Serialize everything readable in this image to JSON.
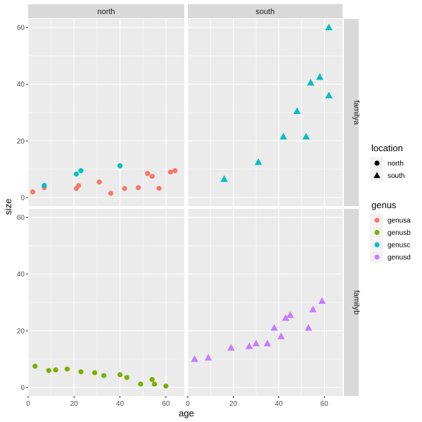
{
  "chart_data": {
    "type": "scatter",
    "xlabel": "age",
    "ylabel": "size",
    "xlim": [
      0,
      68
    ],
    "ylim": [
      -3,
      63
    ],
    "xticks": [
      0,
      20,
      40,
      60
    ],
    "yticks": [
      0,
      20,
      40,
      60
    ],
    "grid": true,
    "facet_cols": [
      "north",
      "south"
    ],
    "facet_rows": [
      "familya",
      "familyb"
    ],
    "legends": [
      {
        "title": "location",
        "position": "right",
        "entries": [
          {
            "label": "north",
            "shape": "circle"
          },
          {
            "label": "south",
            "shape": "triangle"
          }
        ]
      },
      {
        "title": "genus",
        "position": "right",
        "entries": [
          {
            "label": "genusa",
            "color": "#F8766D"
          },
          {
            "label": "genusb",
            "color": "#7CAE00"
          },
          {
            "label": "genusc",
            "color": "#00BFC4"
          },
          {
            "label": "genusd",
            "color": "#C77CFF"
          }
        ]
      }
    ],
    "series": [
      {
        "facet_row": "familya",
        "facet_col": "north",
        "genus": "genusa",
        "location": "north",
        "color": "#F8766D",
        "shape": "circle",
        "points": [
          [
            2,
            2
          ],
          [
            7,
            3.5
          ],
          [
            21,
            3.2
          ],
          [
            22,
            4.2
          ],
          [
            31,
            5.5
          ],
          [
            36,
            1.5
          ],
          [
            42,
            3.2
          ],
          [
            48,
            3.5
          ],
          [
            52,
            8.5
          ],
          [
            54,
            7.5
          ],
          [
            57,
            3.3
          ],
          [
            62,
            9
          ],
          [
            64,
            9.5
          ]
        ]
      },
      {
        "facet_row": "familya",
        "facet_col": "north",
        "genus": "genusc",
        "location": "north",
        "color": "#00BFC4",
        "shape": "circle",
        "points": [
          [
            7,
            4.3
          ],
          [
            21,
            8.3
          ],
          [
            23,
            9.5
          ],
          [
            40,
            11.2
          ]
        ]
      },
      {
        "facet_row": "familya",
        "facet_col": "south",
        "genus": "genusc",
        "location": "south",
        "color": "#00BFC4",
        "shape": "triangle",
        "points": [
          [
            16,
            6.5
          ],
          [
            31,
            12.5
          ],
          [
            42,
            21.5
          ],
          [
            48,
            30.5
          ],
          [
            52,
            21.5
          ],
          [
            54,
            40.5
          ],
          [
            58,
            42.5
          ],
          [
            62,
            60
          ],
          [
            62,
            36
          ]
        ]
      },
      {
        "facet_row": "familyb",
        "facet_col": "north",
        "genus": "genusb",
        "location": "north",
        "color": "#7CAE00",
        "shape": "circle",
        "points": [
          [
            3,
            7.5
          ],
          [
            9,
            6
          ],
          [
            12,
            6.2
          ],
          [
            17,
            6.5
          ],
          [
            23,
            5.5
          ],
          [
            29,
            5.2
          ],
          [
            33,
            4.2
          ],
          [
            40,
            4.5
          ],
          [
            43,
            3.5
          ],
          [
            49,
            1.2
          ],
          [
            54,
            2.8
          ],
          [
            55,
            1.2
          ],
          [
            60,
            0.5
          ]
        ]
      },
      {
        "facet_row": "familyb",
        "facet_col": "south",
        "genus": "genusd",
        "location": "south",
        "color": "#C77CFF",
        "shape": "triangle",
        "points": [
          [
            3,
            10
          ],
          [
            9,
            10.5
          ],
          [
            19,
            14
          ],
          [
            27,
            14.5
          ],
          [
            30,
            15.5
          ],
          [
            35,
            15.5
          ],
          [
            38,
            21
          ],
          [
            41,
            18
          ],
          [
            43,
            24.5
          ],
          [
            45,
            25.5
          ],
          [
            53,
            21
          ],
          [
            55,
            27.5
          ],
          [
            59,
            30.5
          ]
        ]
      }
    ]
  }
}
